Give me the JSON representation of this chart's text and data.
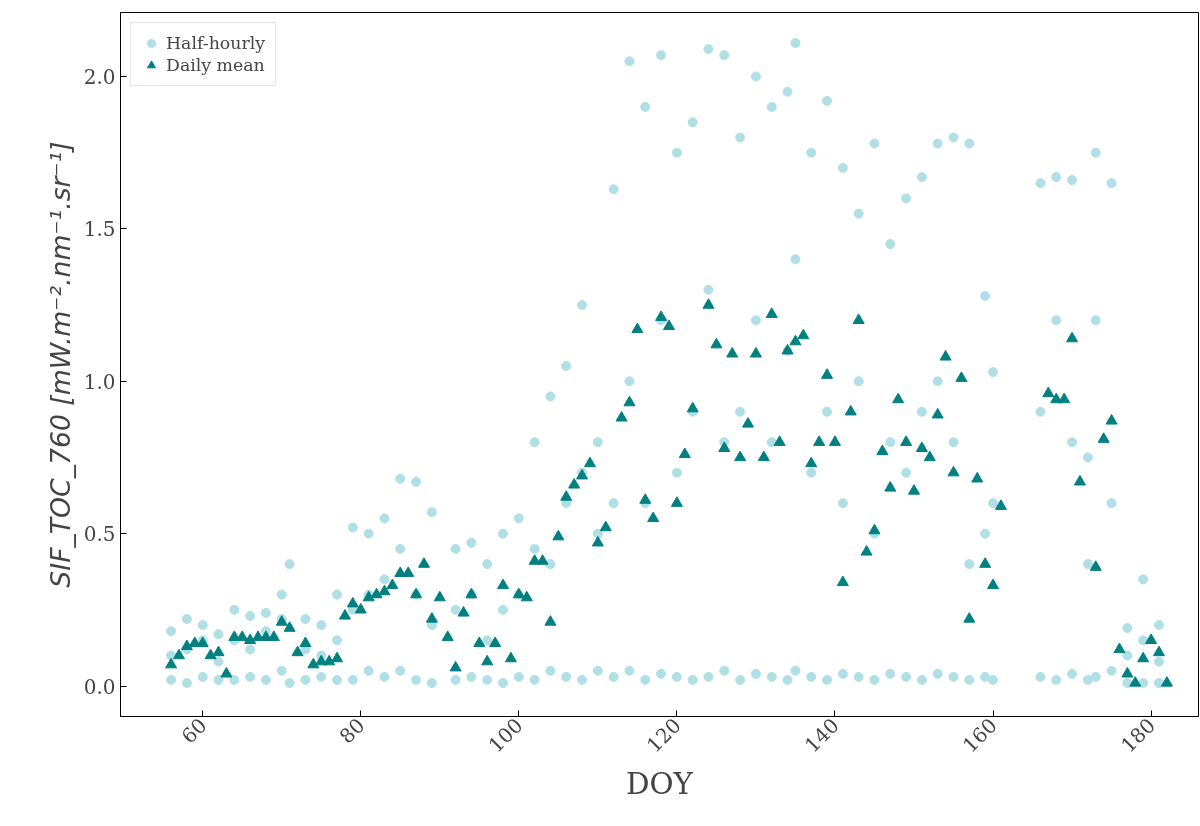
{
  "chart_data": {
    "type": "scatter",
    "xlabel": "DOY",
    "ylabel": "SIF_TOC_760 [mW.m⁻².nm⁻¹.sr⁻¹]",
    "xlim": [
      49.6,
      186
    ],
    "ylim": [
      -0.1,
      2.21
    ],
    "xticks": [
      60,
      80,
      100,
      120,
      140,
      160,
      180
    ],
    "yticks": [
      {
        "value": 0,
        "label": "0.0"
      },
      {
        "value": 0.5,
        "label": "0.5"
      },
      {
        "value": 1,
        "label": "1.0"
      },
      {
        "value": 1.5,
        "label": "1.5"
      },
      {
        "value": 2,
        "label": "2.0"
      }
    ],
    "grid": false,
    "legend": "top left",
    "series": [
      {
        "name": "Half-hourly",
        "color": "#b0e0e6",
        "marker": "circle",
        "x": [
          56,
          56,
          56,
          58,
          58,
          58,
          60,
          60,
          60,
          62,
          62,
          62,
          64,
          64,
          64,
          66,
          66,
          66,
          68,
          68,
          68,
          70,
          70,
          70,
          71,
          71,
          73,
          73,
          73,
          75,
          75,
          75,
          77,
          77,
          77,
          79,
          79,
          79,
          81,
          81,
          81,
          83,
          83,
          83,
          85,
          85,
          85,
          87,
          87,
          87,
          89,
          89,
          89,
          92,
          92,
          92,
          94,
          94,
          94,
          96,
          96,
          96,
          98,
          98,
          98,
          100,
          100,
          100,
          102,
          102,
          102,
          104,
          104,
          104,
          106,
          106,
          106,
          108,
          108,
          108,
          110,
          110,
          110,
          112,
          112,
          112,
          114,
          114,
          114,
          116,
          116,
          116,
          118,
          118,
          118,
          120,
          120,
          120,
          122,
          122,
          122,
          124,
          124,
          124,
          126,
          126,
          126,
          128,
          128,
          128,
          130,
          130,
          130,
          132,
          132,
          132,
          134,
          134,
          134,
          135,
          135,
          135,
          137,
          137,
          137,
          139,
          139,
          139,
          141,
          141,
          141,
          143,
          143,
          143,
          145,
          145,
          145,
          147,
          147,
          147,
          149,
          149,
          149,
          151,
          151,
          151,
          153,
          153,
          153,
          155,
          155,
          155,
          157,
          157,
          157,
          159,
          159,
          159,
          160,
          160,
          160,
          166,
          166,
          166,
          168,
          168,
          168,
          170,
          170,
          170,
          172,
          172,
          172,
          173,
          173,
          173,
          175,
          175,
          175,
          177,
          177,
          177,
          179,
          179,
          179,
          181,
          181,
          181
        ],
        "values": [
          0.02,
          0.1,
          0.18,
          0.01,
          0.12,
          0.22,
          0.03,
          0.15,
          0.2,
          0.02,
          0.08,
          0.17,
          0.02,
          0.15,
          0.25,
          0.03,
          0.12,
          0.23,
          0.02,
          0.18,
          0.24,
          0.05,
          0.22,
          0.3,
          0.01,
          0.4,
          0.02,
          0.12,
          0.22,
          0.03,
          0.1,
          0.2,
          0.02,
          0.15,
          0.3,
          0.02,
          0.25,
          0.52,
          0.05,
          0.3,
          0.5,
          0.03,
          0.35,
          0.55,
          0.05,
          0.45,
          0.68,
          0.02,
          0.3,
          0.67,
          0.01,
          0.2,
          0.57,
          0.02,
          0.25,
          0.45,
          0.03,
          0.3,
          0.47,
          0.02,
          0.15,
          0.4,
          0.01,
          0.25,
          0.5,
          0.03,
          0.3,
          0.55,
          0.02,
          0.45,
          0.8,
          0.05,
          0.4,
          0.95,
          0.03,
          0.6,
          1.05,
          0.02,
          0.7,
          1.25,
          0.05,
          0.5,
          0.8,
          0.03,
          0.6,
          1.63,
          0.05,
          1.0,
          2.05,
          0.02,
          0.6,
          1.9,
          0.04,
          1.2,
          2.07,
          0.03,
          0.7,
          1.75,
          0.02,
          0.9,
          1.85,
          0.03,
          1.3,
          2.09,
          0.05,
          0.8,
          2.07,
          0.02,
          0.9,
          1.8,
          0.04,
          1.2,
          2.0,
          0.03,
          0.8,
          1.9,
          0.02,
          1.1,
          1.95,
          0.05,
          1.4,
          2.11,
          0.03,
          0.7,
          1.75,
          0.02,
          0.9,
          1.92,
          0.04,
          0.6,
          1.7,
          0.03,
          1.0,
          1.55,
          0.02,
          0.5,
          1.78,
          0.04,
          0.8,
          1.45,
          0.03,
          0.7,
          1.6,
          0.02,
          0.9,
          1.67,
          0.04,
          1.0,
          1.78,
          0.03,
          0.8,
          1.8,
          0.02,
          0.4,
          1.78,
          0.03,
          0.5,
          1.28,
          0.02,
          0.6,
          1.03,
          0.03,
          0.9,
          1.65,
          0.02,
          1.2,
          1.67,
          0.04,
          0.8,
          1.66,
          0.02,
          0.4,
          0.75,
          0.03,
          1.2,
          1.75,
          0.05,
          0.6,
          1.65,
          0.01,
          0.1,
          0.19,
          0.01,
          0.15,
          0.35,
          0.01,
          0.08,
          0.2
        ]
      },
      {
        "name": "Daily mean",
        "color": "#008080",
        "marker": "triangle",
        "x": [
          56,
          57,
          58,
          59,
          60,
          61,
          62,
          63,
          64,
          65,
          66,
          67,
          68,
          69,
          70,
          71,
          72,
          73,
          74,
          75,
          76,
          77,
          78,
          79,
          80,
          81,
          82,
          83,
          84,
          85,
          86,
          87,
          88,
          89,
          90,
          91,
          92,
          93,
          94,
          95,
          96,
          97,
          98,
          99,
          100,
          101,
          102,
          103,
          104,
          105,
          106,
          107,
          108,
          109,
          110,
          111,
          113,
          114,
          115,
          116,
          117,
          118,
          119,
          120,
          121,
          122,
          124,
          125,
          126,
          127,
          128,
          129,
          130,
          131,
          132,
          133,
          134,
          135,
          136,
          137,
          138,
          139,
          140,
          141,
          142,
          143,
          144,
          145,
          146,
          147,
          148,
          149,
          150,
          151,
          152,
          153,
          154,
          155,
          156,
          157,
          158,
          159,
          160,
          161,
          167,
          168,
          169,
          170,
          171,
          173,
          174,
          175,
          176,
          177,
          178,
          179,
          180,
          181,
          182
        ],
        "values": [
          0.07,
          0.1,
          0.13,
          0.14,
          0.14,
          0.1,
          0.11,
          0.04,
          0.16,
          0.16,
          0.15,
          0.16,
          0.16,
          0.16,
          0.21,
          0.19,
          0.11,
          0.14,
          0.07,
          0.08,
          0.08,
          0.09,
          0.23,
          0.27,
          0.25,
          0.29,
          0.3,
          0.31,
          0.33,
          0.37,
          0.37,
          0.3,
          0.4,
          0.22,
          0.29,
          0.16,
          0.06,
          0.24,
          0.3,
          0.14,
          0.08,
          0.14,
          0.33,
          0.09,
          0.3,
          0.29,
          0.41,
          0.41,
          0.21,
          0.49,
          0.62,
          0.66,
          0.69,
          0.73,
          0.47,
          0.52,
          0.88,
          0.93,
          1.17,
          0.61,
          0.55,
          1.21,
          1.18,
          0.6,
          0.76,
          0.91,
          1.25,
          1.12,
          0.78,
          1.09,
          0.75,
          0.86,
          1.09,
          0.75,
          1.22,
          0.8,
          1.1,
          1.13,
          1.15,
          0.73,
          0.8,
          1.02,
          0.8,
          0.34,
          0.9,
          1.2,
          0.44,
          0.51,
          0.77,
          0.65,
          0.94,
          0.8,
          0.64,
          0.78,
          0.75,
          0.89,
          1.08,
          0.7,
          1.01,
          0.22,
          0.68,
          0.4,
          0.33,
          0.59,
          0.96,
          0.94,
          0.94,
          1.14,
          0.67,
          0.39,
          0.81,
          0.87,
          0.12,
          0.04,
          0.01,
          0.09,
          0.15,
          0.11,
          0.01
        ]
      }
    ]
  }
}
